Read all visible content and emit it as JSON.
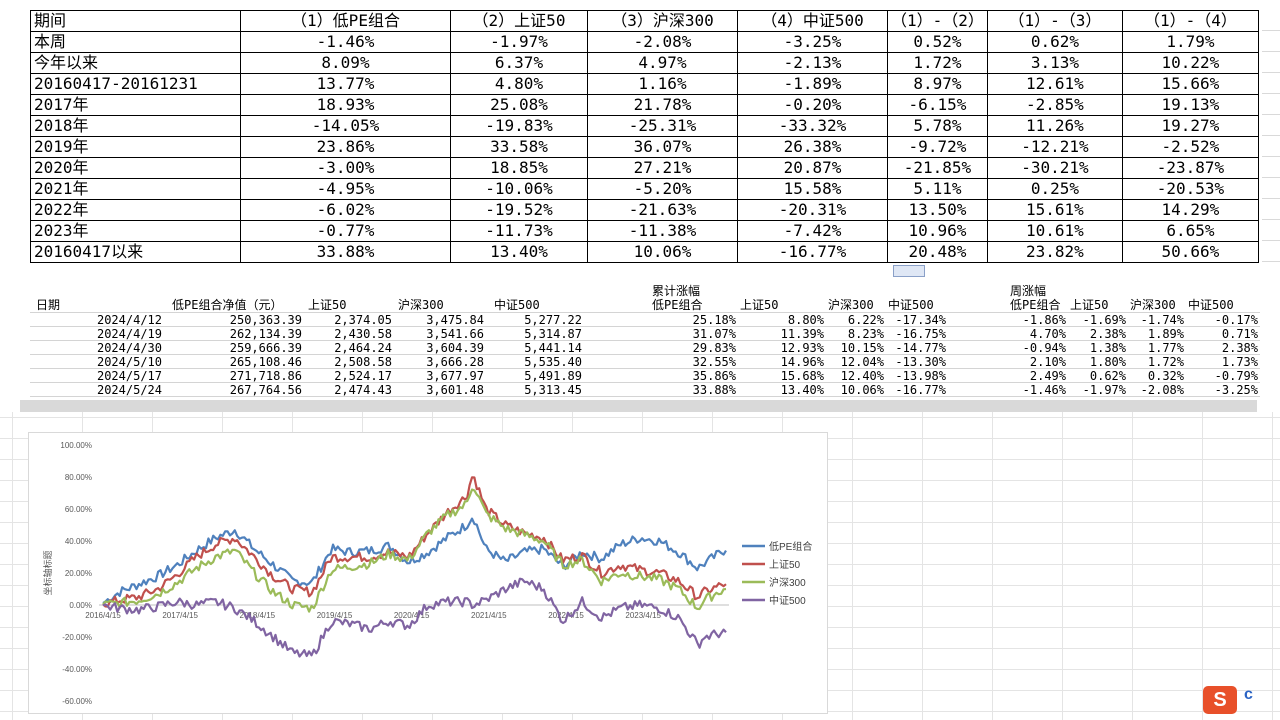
{
  "summary_table": {
    "headers": [
      "期间",
      "（1）低PE组合",
      "（2）上证50",
      "（3）沪深300",
      "（4）中证500",
      "（1）-（2）",
      "（1）-（3）",
      "（1）-（4）"
    ],
    "rows": [
      [
        "本周",
        "-1.46%",
        "-1.97%",
        "-2.08%",
        "-3.25%",
        "0.52%",
        "0.62%",
        "1.79%"
      ],
      [
        "今年以来",
        "8.09%",
        "6.37%",
        "4.97%",
        "-2.13%",
        "1.72%",
        "3.13%",
        "10.22%"
      ],
      [
        "20160417-20161231",
        "13.77%",
        "4.80%",
        "1.16%",
        "-1.89%",
        "8.97%",
        "12.61%",
        "15.66%"
      ],
      [
        "2017年",
        "18.93%",
        "25.08%",
        "21.78%",
        "-0.20%",
        "-6.15%",
        "-2.85%",
        "19.13%"
      ],
      [
        "2018年",
        "-14.05%",
        "-19.83%",
        "-25.31%",
        "-33.32%",
        "5.78%",
        "11.26%",
        "19.27%"
      ],
      [
        "2019年",
        "23.86%",
        "33.58%",
        "36.07%",
        "26.38%",
        "-9.72%",
        "-12.21%",
        "-2.52%"
      ],
      [
        "2020年",
        "-3.00%",
        "18.85%",
        "27.21%",
        "20.87%",
        "-21.85%",
        "-30.21%",
        "-23.87%"
      ],
      [
        "2021年",
        "-4.95%",
        "-10.06%",
        "-5.20%",
        "15.58%",
        "5.11%",
        "0.25%",
        "-20.53%"
      ],
      [
        "2022年",
        "-6.02%",
        "-19.52%",
        "-21.63%",
        "-20.31%",
        "13.50%",
        "15.61%",
        "14.29%"
      ],
      [
        "2023年",
        "-0.77%",
        "-11.73%",
        "-11.38%",
        "-7.42%",
        "10.96%",
        "10.61%",
        "6.65%"
      ],
      [
        "20160417以来",
        "33.88%",
        "13.40%",
        "10.06%",
        "-16.77%",
        "20.48%",
        "23.82%",
        "50.66%"
      ]
    ]
  },
  "weekly_table": {
    "group_cumulative": "累计涨幅",
    "group_weekly": "周涨幅",
    "headers": [
      "日期",
      "低PE组合净值（元）",
      "上证50",
      "沪深300",
      "中证500",
      "低PE组合",
      "上证50",
      "沪深300",
      "中证500",
      "低PE组合",
      "上证50",
      "沪深300",
      "中证500"
    ],
    "rows": [
      [
        "2024/4/12",
        "250,363.39",
        "2,374.05",
        "3,475.84",
        "5,277.22",
        "25.18%",
        "8.80%",
        "6.22%",
        "-17.34%",
        "-1.86%",
        "-1.69%",
        "-1.74%",
        "-0.17%"
      ],
      [
        "2024/4/19",
        "262,134.39",
        "2,430.58",
        "3,541.66",
        "5,314.87",
        "31.07%",
        "11.39%",
        "8.23%",
        "-16.75%",
        "4.70%",
        "2.38%",
        "1.89%",
        "0.71%"
      ],
      [
        "2024/4/30",
        "259,666.39",
        "2,464.24",
        "3,604.39",
        "5,441.14",
        "29.83%",
        "12.93%",
        "10.15%",
        "-14.77%",
        "-0.94%",
        "1.38%",
        "1.77%",
        "2.38%"
      ],
      [
        "2024/5/10",
        "265,108.46",
        "2,508.58",
        "3,666.28",
        "5,535.40",
        "32.55%",
        "14.96%",
        "12.04%",
        "-13.30%",
        "2.10%",
        "1.80%",
        "1.72%",
        "1.73%"
      ],
      [
        "2024/5/17",
        "271,718.86",
        "2,524.17",
        "3,677.97",
        "5,491.89",
        "35.86%",
        "15.68%",
        "12.40%",
        "-13.98%",
        "2.49%",
        "0.62%",
        "0.32%",
        "-0.79%"
      ],
      [
        "2024/5/24",
        "267,764.56",
        "2,474.43",
        "3,601.48",
        "5,313.45",
        "33.88%",
        "13.40%",
        "10.06%",
        "-16.77%",
        "-1.46%",
        "-1.97%",
        "-2.08%",
        "-3.25%"
      ]
    ]
  },
  "chart_data": {
    "type": "line",
    "title": "",
    "xlabel": "",
    "ylabel": "坐标轴标题",
    "ylim": [
      -0.6,
      1.0
    ],
    "y_ticks": [
      "100.00%",
      "80.00%",
      "60.00%",
      "40.00%",
      "20.00%",
      "0.00%",
      "-20.00%",
      "-40.00%",
      "-60.00%"
    ],
    "x_tick_labels": [
      "2016/4/15",
      "2017/4/15",
      "2018/4/15",
      "2019/4/15",
      "2020/4/15",
      "2021/4/15",
      "2022/4/15",
      "2023/4/15"
    ],
    "x": [
      "2016-04",
      "2016-07",
      "2016-10",
      "2017-01",
      "2017-04",
      "2017-07",
      "2017-10",
      "2018-01",
      "2018-04",
      "2018-07",
      "2018-10",
      "2019-01",
      "2019-04",
      "2019-07",
      "2019-10",
      "2020-01",
      "2020-04",
      "2020-07",
      "2020-10",
      "2021-01",
      "2021-02",
      "2021-04",
      "2021-07",
      "2021-10",
      "2022-01",
      "2022-04",
      "2022-07",
      "2022-10",
      "2023-01",
      "2023-04",
      "2023-07",
      "2023-10",
      "2024-01",
      "2024-02",
      "2024-05"
    ],
    "series": [
      {
        "name": "低PE组合",
        "color": "#4f81bd",
        "values": [
          0.0,
          0.08,
          0.13,
          0.18,
          0.25,
          0.34,
          0.42,
          0.47,
          0.35,
          0.25,
          0.15,
          0.14,
          0.35,
          0.33,
          0.34,
          0.37,
          0.27,
          0.33,
          0.42,
          0.5,
          0.56,
          0.35,
          0.27,
          0.33,
          0.35,
          0.24,
          0.33,
          0.29,
          0.38,
          0.42,
          0.4,
          0.33,
          0.23,
          0.26,
          0.34
        ]
      },
      {
        "name": "上证50",
        "color": "#c0504d",
        "values": [
          0.0,
          0.03,
          0.05,
          0.1,
          0.19,
          0.3,
          0.38,
          0.42,
          0.3,
          0.18,
          0.1,
          0.08,
          0.3,
          0.3,
          0.3,
          0.33,
          0.3,
          0.45,
          0.58,
          0.68,
          0.82,
          0.6,
          0.5,
          0.45,
          0.42,
          0.28,
          0.31,
          0.2,
          0.25,
          0.22,
          0.2,
          0.15,
          0.05,
          0.08,
          0.13
        ]
      },
      {
        "name": "沪深300",
        "color": "#9bbb59",
        "values": [
          0.0,
          0.01,
          0.03,
          0.07,
          0.14,
          0.23,
          0.3,
          0.34,
          0.2,
          0.08,
          0.0,
          -0.02,
          0.22,
          0.24,
          0.26,
          0.32,
          0.28,
          0.45,
          0.56,
          0.63,
          0.76,
          0.57,
          0.48,
          0.44,
          0.4,
          0.25,
          0.28,
          0.15,
          0.2,
          0.18,
          0.16,
          0.1,
          -0.02,
          0.03,
          0.1
        ]
      },
      {
        "name": "中证500",
        "color": "#8064a2",
        "values": [
          0.0,
          -0.02,
          -0.03,
          -0.01,
          0.02,
          0.0,
          0.02,
          -0.02,
          -0.1,
          -0.2,
          -0.3,
          -0.32,
          -0.1,
          -0.12,
          -0.15,
          -0.1,
          -0.13,
          0.0,
          0.02,
          0.02,
          0.0,
          0.03,
          0.1,
          0.15,
          0.1,
          -0.1,
          0.02,
          -0.08,
          -0.02,
          0.0,
          -0.02,
          -0.08,
          -0.25,
          -0.2,
          -0.17
        ]
      }
    ],
    "legend_position": "right"
  }
}
